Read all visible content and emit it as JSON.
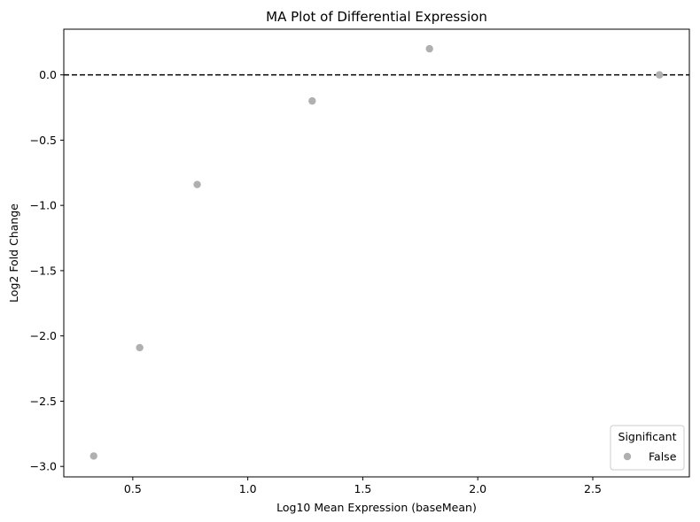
{
  "chart_data": {
    "type": "scatter",
    "title": "MA Plot of Differential Expression",
    "xlabel": "Log10 Mean Expression (baseMean)",
    "ylabel": "Log2 Fold Change",
    "xlim": [
      0.2,
      2.92
    ],
    "ylim": [
      -3.08,
      0.35
    ],
    "xticks": [
      0.5,
      1.0,
      1.5,
      2.0,
      2.5
    ],
    "xtick_labels": [
      "0.5",
      "1.0",
      "1.5",
      "2.0",
      "2.5"
    ],
    "yticks": [
      0.0,
      -0.5,
      -1.0,
      -1.5,
      -2.0,
      -2.5,
      -3.0
    ],
    "ytick_labels": [
      "0.0",
      "−0.5",
      "−1.0",
      "−1.5",
      "−2.0",
      "−2.5",
      "−3.0"
    ],
    "reference_line": {
      "y": 0.0,
      "style": "dashed",
      "color": "#000000"
    },
    "grid": false,
    "legend": {
      "title": "Significant",
      "placement": "lower-right",
      "entries": [
        "False"
      ]
    },
    "series": [
      {
        "name": "False",
        "color": "#b0b0b0",
        "points": [
          {
            "x": 0.33,
            "y": -2.92
          },
          {
            "x": 0.53,
            "y": -2.09
          },
          {
            "x": 0.78,
            "y": -0.84
          },
          {
            "x": 1.28,
            "y": -0.2
          },
          {
            "x": 1.79,
            "y": 0.2
          },
          {
            "x": 2.79,
            "y": 0.0
          }
        ]
      }
    ]
  }
}
